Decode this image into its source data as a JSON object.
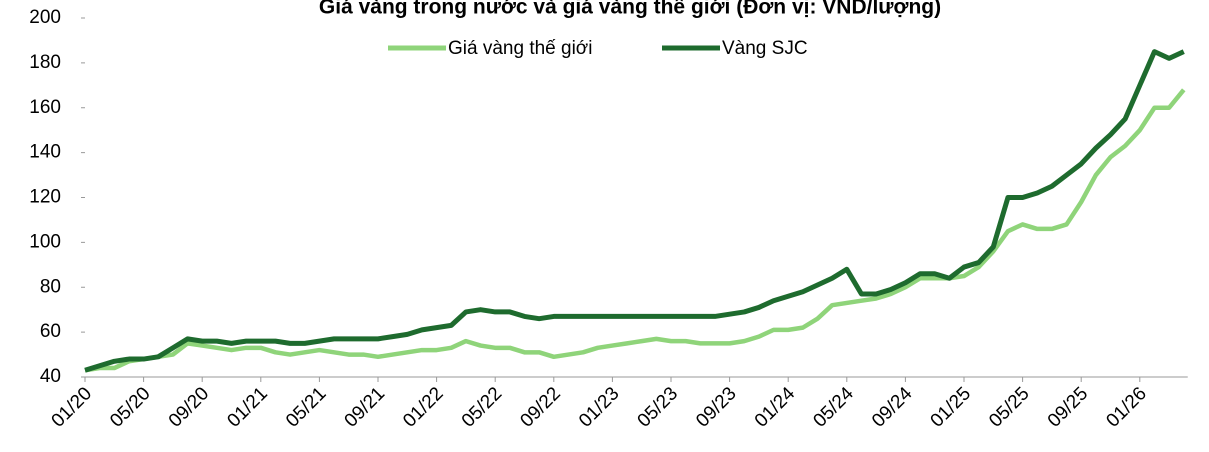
{
  "chart_data": {
    "type": "line",
    "title": "Giá vàng trong nước và giá vàng thế giới (Đơn vị: VND/lượng)",
    "categories": [
      "01/20",
      null,
      null,
      null,
      "05/20",
      null,
      null,
      null,
      "09/20",
      null,
      null,
      null,
      "01/21",
      null,
      null,
      null,
      "05/21",
      null,
      null,
      null,
      "09/21",
      null,
      null,
      null,
      "01/22",
      null,
      null,
      null,
      "05/22",
      null,
      null,
      null,
      "09/22",
      null,
      null,
      null,
      "01/23",
      null,
      null,
      null,
      "05/23",
      null,
      null,
      null,
      "09/23",
      null,
      null,
      null,
      "01/24",
      null,
      null,
      null,
      "05/24",
      null,
      null,
      null,
      "09/24",
      null,
      null,
      null,
      "01/25",
      null,
      null,
      null,
      "05/25",
      null,
      null,
      null,
      "09/25",
      null,
      null,
      null,
      "01/26",
      null,
      null,
      null
    ],
    "series": [
      {
        "name": "Giá vàng thế giới",
        "color": "#8fd47a",
        "values": [
          43,
          44,
          44,
          47,
          48,
          49,
          50,
          55,
          54,
          53,
          52,
          53,
          53,
          51,
          50,
          51,
          52,
          51,
          50,
          50,
          49,
          50,
          51,
          52,
          52,
          53,
          56,
          54,
          53,
          53,
          51,
          51,
          49,
          50,
          51,
          53,
          54,
          55,
          56,
          57,
          56,
          56,
          55,
          55,
          55,
          56,
          58,
          61,
          61,
          62,
          66,
          72,
          73,
          74,
          75,
          77,
          80,
          84,
          84,
          84,
          85,
          89,
          96,
          105,
          108,
          106,
          106,
          108,
          118,
          130,
          138,
          143,
          150,
          160,
          160,
          168
        ]
      },
      {
        "name": "Vàng SJC",
        "color": "#1e6b2e",
        "values": [
          43,
          45,
          47,
          48,
          48,
          49,
          53,
          57,
          56,
          56,
          55,
          56,
          56,
          56,
          55,
          55,
          56,
          57,
          57,
          57,
          57,
          58,
          59,
          61,
          62,
          63,
          69,
          70,
          69,
          69,
          67,
          66,
          67,
          67,
          67,
          67,
          67,
          67,
          67,
          67,
          67,
          67,
          67,
          67,
          68,
          69,
          71,
          74,
          76,
          78,
          81,
          84,
          88,
          77,
          77,
          79,
          82,
          86,
          86,
          84,
          89,
          91,
          98,
          120,
          120,
          122,
          125,
          130,
          135,
          142,
          148,
          155,
          170,
          185,
          182,
          185
        ]
      }
    ],
    "ylim": [
      40,
      200
    ],
    "yticks": [
      40,
      60,
      80,
      100,
      120,
      140,
      160,
      180,
      200
    ],
    "legend": "top",
    "grid": false
  }
}
